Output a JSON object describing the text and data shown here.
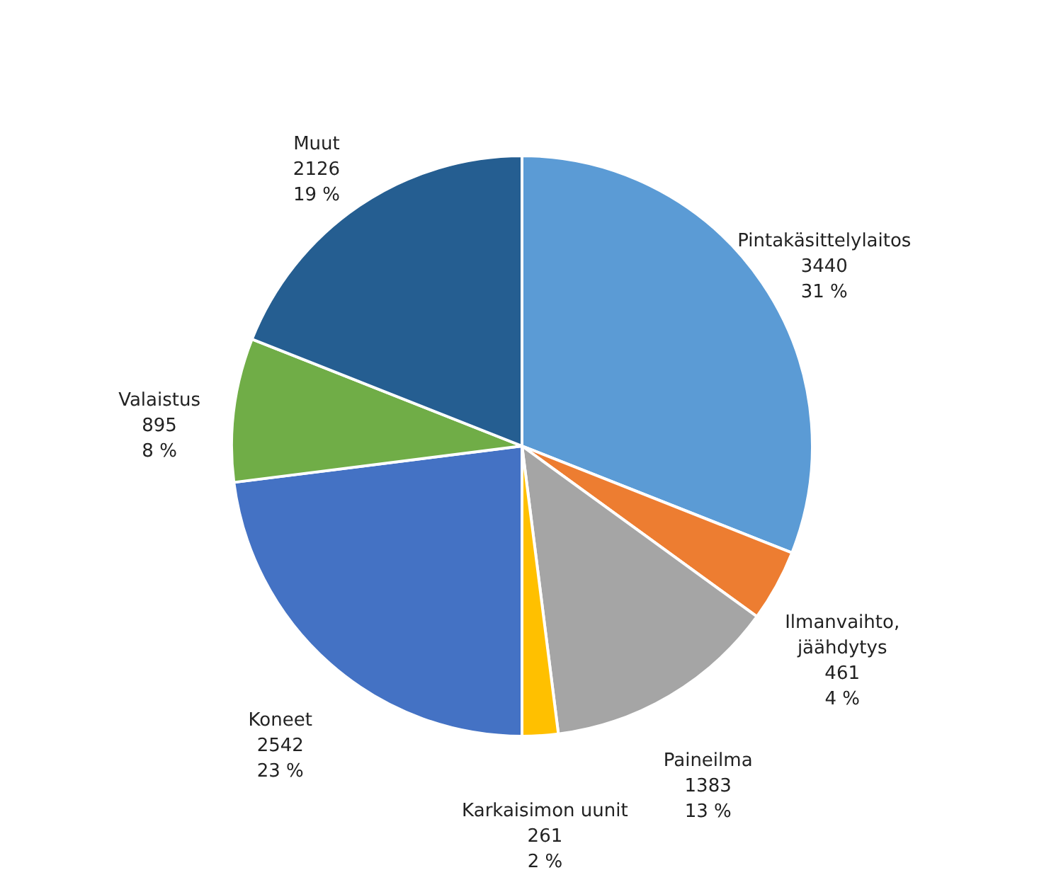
{
  "chart_data": {
    "type": "pie",
    "categories": [
      "Pintakäsittelylaitos",
      "Ilmanvaihto, jäähdytys",
      "Paineilma",
      "Karkaisimon uunit",
      "Koneet",
      "Valaistus",
      "Muut"
    ],
    "values": [
      31,
      4,
      13,
      2,
      23,
      8,
      19
    ],
    "colors": [
      "#5b9bd5",
      "#ed7d31",
      "#a5a5a5",
      "#ffc000",
      "#4472c4",
      "#70ad47",
      "#255e91"
    ],
    "value_labels": [
      "3440\n31 %",
      "461\n4 %",
      "1383\n13 %",
      "261\n2 %",
      "2542\n23 %",
      "895\n8 %",
      "2126\n19 %"
    ],
    "legend": false
  }
}
